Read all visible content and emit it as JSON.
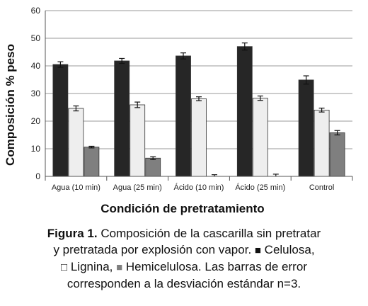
{
  "chart_data": {
    "type": "bar",
    "ylabel": "Composición % peso",
    "xlabel": "Condición de pretratamiento",
    "ylim": [
      0,
      60
    ],
    "yticks": [
      0,
      10,
      20,
      30,
      40,
      50,
      60
    ],
    "grid": "horizontal",
    "categories": [
      "Agua (10 min)",
      "Agua (25 min)",
      "Ácido (10 min)",
      "Ácido (25 min)",
      "Control"
    ],
    "series": [
      {
        "name": "Celulosa",
        "color": "#262626",
        "values": [
          40.5,
          41.8,
          43.6,
          47.0,
          34.9
        ],
        "errors": [
          1.0,
          0.9,
          1.1,
          1.3,
          1.5
        ]
      },
      {
        "name": "Lignina",
        "color": "#eeeeee",
        "values": [
          24.6,
          25.9,
          28.1,
          28.3,
          24.0
        ],
        "errors": [
          0.9,
          1.0,
          0.7,
          0.8,
          0.7
        ]
      },
      {
        "name": "Hemicelulosa",
        "color": "#7f7f7f",
        "values": [
          10.6,
          6.6,
          0.0,
          0.0,
          15.8
        ],
        "errors": [
          0.3,
          0.5,
          0.6,
          0.8,
          0.8
        ]
      }
    ]
  },
  "caption": {
    "label": "Figura 1.",
    "line1": " Composición de la cascarilla  sin pretratar",
    "line2a": "y pretratada por explosión con vapor. ",
    "sym_celulosa": "■",
    "line2b": " Celulosa,",
    "sym_lignina": "□",
    "line3": " Lignina, ",
    "sym_hemi": "■",
    "line3b": " Hemicelulosa.  Las barras de error",
    "line4": "corresponden a la desviación estándar n=3."
  }
}
